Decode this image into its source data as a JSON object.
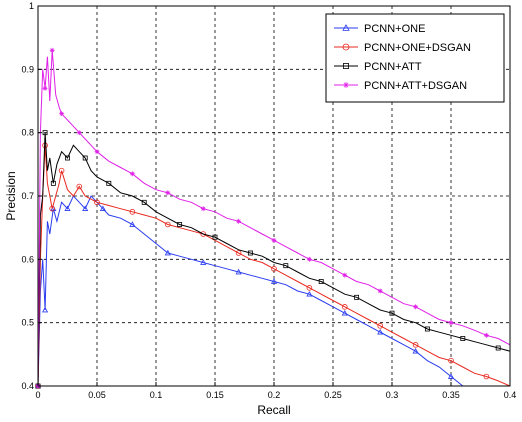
{
  "chart_data": {
    "type": "line",
    "xlabel": "Recall",
    "ylabel": "Precision",
    "xlim": [
      0,
      0.4
    ],
    "ylim": [
      0.4,
      1
    ],
    "grid": true,
    "grid_style": "dashed",
    "legend_position": "top-right",
    "x_ticks": [
      "0",
      "0.05",
      "0.1",
      "0.15",
      "0.2",
      "0.25",
      "0.3",
      "0.35",
      "0.4"
    ],
    "y_ticks": [
      "0.4",
      "0.5",
      "0.6",
      "0.7",
      "0.8",
      "0.9",
      "1"
    ],
    "series": [
      {
        "name": "PCNN+ONE",
        "color": "#2a3cf0",
        "marker": "triangle",
        "points": [
          [
            0.0,
            0.4
          ],
          [
            0.002,
            0.55
          ],
          [
            0.004,
            0.6
          ],
          [
            0.006,
            0.52
          ],
          [
            0.008,
            0.66
          ],
          [
            0.01,
            0.64
          ],
          [
            0.013,
            0.68
          ],
          [
            0.016,
            0.66
          ],
          [
            0.02,
            0.69
          ],
          [
            0.025,
            0.68
          ],
          [
            0.03,
            0.7
          ],
          [
            0.035,
            0.69
          ],
          [
            0.04,
            0.68
          ],
          [
            0.045,
            0.7
          ],
          [
            0.05,
            0.69
          ],
          [
            0.055,
            0.68
          ],
          [
            0.06,
            0.67
          ],
          [
            0.07,
            0.665
          ],
          [
            0.08,
            0.655
          ],
          [
            0.09,
            0.64
          ],
          [
            0.1,
            0.625
          ],
          [
            0.11,
            0.61
          ],
          [
            0.12,
            0.605
          ],
          [
            0.13,
            0.6
          ],
          [
            0.14,
            0.595
          ],
          [
            0.15,
            0.59
          ],
          [
            0.16,
            0.585
          ],
          [
            0.17,
            0.58
          ],
          [
            0.18,
            0.575
          ],
          [
            0.19,
            0.57
          ],
          [
            0.2,
            0.565
          ],
          [
            0.21,
            0.56
          ],
          [
            0.22,
            0.55
          ],
          [
            0.23,
            0.545
          ],
          [
            0.24,
            0.535
          ],
          [
            0.25,
            0.525
          ],
          [
            0.26,
            0.515
          ],
          [
            0.27,
            0.505
          ],
          [
            0.28,
            0.495
          ],
          [
            0.29,
            0.485
          ],
          [
            0.3,
            0.475
          ],
          [
            0.31,
            0.465
          ],
          [
            0.32,
            0.455
          ],
          [
            0.33,
            0.44
          ],
          [
            0.34,
            0.43
          ],
          [
            0.35,
            0.415
          ],
          [
            0.36,
            0.4
          ]
        ]
      },
      {
        "name": "PCNN+ONE+DSGAN",
        "color": "#e8291f",
        "marker": "circle",
        "points": [
          [
            0.0,
            0.4
          ],
          [
            0.002,
            0.6
          ],
          [
            0.004,
            0.7
          ],
          [
            0.006,
            0.78
          ],
          [
            0.008,
            0.72
          ],
          [
            0.01,
            0.7
          ],
          [
            0.012,
            0.68
          ],
          [
            0.015,
            0.7
          ],
          [
            0.018,
            0.72
          ],
          [
            0.02,
            0.74
          ],
          [
            0.025,
            0.71
          ],
          [
            0.03,
            0.7
          ],
          [
            0.035,
            0.715
          ],
          [
            0.04,
            0.7
          ],
          [
            0.045,
            0.695
          ],
          [
            0.05,
            0.69
          ],
          [
            0.06,
            0.685
          ],
          [
            0.07,
            0.68
          ],
          [
            0.08,
            0.675
          ],
          [
            0.09,
            0.67
          ],
          [
            0.1,
            0.665
          ],
          [
            0.11,
            0.655
          ],
          [
            0.12,
            0.65
          ],
          [
            0.13,
            0.645
          ],
          [
            0.14,
            0.64
          ],
          [
            0.15,
            0.63
          ],
          [
            0.16,
            0.62
          ],
          [
            0.17,
            0.61
          ],
          [
            0.18,
            0.6
          ],
          [
            0.19,
            0.595
          ],
          [
            0.2,
            0.585
          ],
          [
            0.21,
            0.575
          ],
          [
            0.22,
            0.565
          ],
          [
            0.23,
            0.555
          ],
          [
            0.24,
            0.545
          ],
          [
            0.25,
            0.535
          ],
          [
            0.26,
            0.525
          ],
          [
            0.27,
            0.515
          ],
          [
            0.28,
            0.505
          ],
          [
            0.29,
            0.495
          ],
          [
            0.3,
            0.485
          ],
          [
            0.31,
            0.475
          ],
          [
            0.32,
            0.465
          ],
          [
            0.33,
            0.455
          ],
          [
            0.34,
            0.445
          ],
          [
            0.35,
            0.44
          ],
          [
            0.36,
            0.43
          ],
          [
            0.37,
            0.42
          ],
          [
            0.38,
            0.415
          ],
          [
            0.39,
            0.408
          ],
          [
            0.4,
            0.4
          ]
        ]
      },
      {
        "name": "PCNN+ATT",
        "color": "#000000",
        "marker": "square",
        "points": [
          [
            0.0,
            0.4
          ],
          [
            0.002,
            0.67
          ],
          [
            0.004,
            0.7
          ],
          [
            0.006,
            0.8
          ],
          [
            0.008,
            0.74
          ],
          [
            0.01,
            0.76
          ],
          [
            0.013,
            0.72
          ],
          [
            0.016,
            0.75
          ],
          [
            0.02,
            0.77
          ],
          [
            0.025,
            0.76
          ],
          [
            0.03,
            0.78
          ],
          [
            0.035,
            0.77
          ],
          [
            0.04,
            0.76
          ],
          [
            0.045,
            0.74
          ],
          [
            0.05,
            0.73
          ],
          [
            0.06,
            0.72
          ],
          [
            0.07,
            0.705
          ],
          [
            0.08,
            0.7
          ],
          [
            0.09,
            0.69
          ],
          [
            0.1,
            0.675
          ],
          [
            0.11,
            0.665
          ],
          [
            0.12,
            0.655
          ],
          [
            0.13,
            0.65
          ],
          [
            0.14,
            0.64
          ],
          [
            0.15,
            0.635
          ],
          [
            0.16,
            0.625
          ],
          [
            0.17,
            0.615
          ],
          [
            0.18,
            0.61
          ],
          [
            0.19,
            0.605
          ],
          [
            0.2,
            0.595
          ],
          [
            0.21,
            0.59
          ],
          [
            0.22,
            0.58
          ],
          [
            0.23,
            0.57
          ],
          [
            0.24,
            0.565
          ],
          [
            0.25,
            0.555
          ],
          [
            0.26,
            0.545
          ],
          [
            0.27,
            0.54
          ],
          [
            0.28,
            0.53
          ],
          [
            0.29,
            0.52
          ],
          [
            0.3,
            0.515
          ],
          [
            0.31,
            0.505
          ],
          [
            0.32,
            0.5
          ],
          [
            0.33,
            0.49
          ],
          [
            0.34,
            0.485
          ],
          [
            0.35,
            0.48
          ],
          [
            0.36,
            0.475
          ],
          [
            0.37,
            0.47
          ],
          [
            0.38,
            0.465
          ],
          [
            0.39,
            0.46
          ],
          [
            0.4,
            0.455
          ]
        ]
      },
      {
        "name": "PCNN+ATT+DSGAN",
        "color": "#e020e8",
        "marker": "star",
        "points": [
          [
            0.0,
            0.4
          ],
          [
            0.002,
            0.8
          ],
          [
            0.004,
            0.9
          ],
          [
            0.006,
            0.87
          ],
          [
            0.008,
            0.92
          ],
          [
            0.01,
            0.85
          ],
          [
            0.012,
            0.93
          ],
          [
            0.015,
            0.86
          ],
          [
            0.018,
            0.84
          ],
          [
            0.02,
            0.83
          ],
          [
            0.025,
            0.82
          ],
          [
            0.03,
            0.81
          ],
          [
            0.035,
            0.8
          ],
          [
            0.04,
            0.79
          ],
          [
            0.045,
            0.78
          ],
          [
            0.05,
            0.77
          ],
          [
            0.06,
            0.755
          ],
          [
            0.07,
            0.745
          ],
          [
            0.08,
            0.735
          ],
          [
            0.09,
            0.72
          ],
          [
            0.1,
            0.71
          ],
          [
            0.11,
            0.705
          ],
          [
            0.12,
            0.695
          ],
          [
            0.13,
            0.69
          ],
          [
            0.14,
            0.68
          ],
          [
            0.15,
            0.675
          ],
          [
            0.16,
            0.665
          ],
          [
            0.17,
            0.66
          ],
          [
            0.18,
            0.65
          ],
          [
            0.19,
            0.64
          ],
          [
            0.2,
            0.63
          ],
          [
            0.21,
            0.62
          ],
          [
            0.22,
            0.61
          ],
          [
            0.23,
            0.6
          ],
          [
            0.24,
            0.595
          ],
          [
            0.25,
            0.585
          ],
          [
            0.26,
            0.575
          ],
          [
            0.27,
            0.565
          ],
          [
            0.28,
            0.56
          ],
          [
            0.29,
            0.55
          ],
          [
            0.3,
            0.54
          ],
          [
            0.31,
            0.53
          ],
          [
            0.32,
            0.525
          ],
          [
            0.33,
            0.515
          ],
          [
            0.34,
            0.505
          ],
          [
            0.35,
            0.5
          ],
          [
            0.36,
            0.495
          ],
          [
            0.37,
            0.488
          ],
          [
            0.38,
            0.48
          ],
          [
            0.39,
            0.475
          ],
          [
            0.4,
            0.465
          ]
        ]
      }
    ]
  }
}
